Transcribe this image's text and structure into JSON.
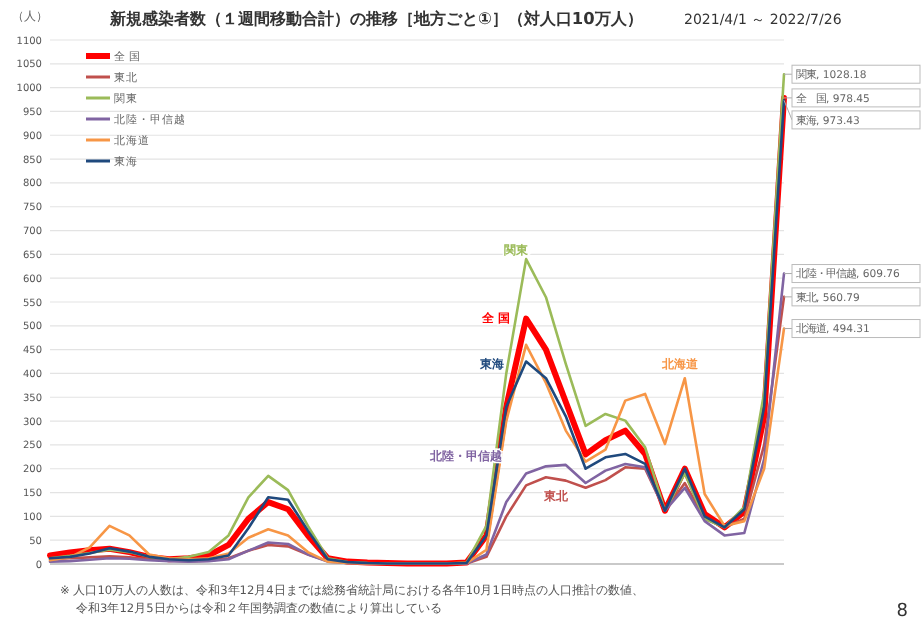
{
  "chart_data": {
    "type": "line",
    "title": "新規感染者数（１週間移動合計）の推移［地方ごと①］（対人口10万人）",
    "subtitle": "2021/4/1 ～ 2022/7/26",
    "ylabel": "（人）",
    "categories": [
      null,
      null,
      null,
      null,
      null,
      null,
      null,
      null,
      null,
      null,
      null,
      null,
      null,
      null,
      null,
      null,
      null,
      null,
      null,
      null,
      null,
      null,
      null,
      null,
      null,
      null,
      null,
      null,
      null,
      null,
      null,
      null,
      null,
      null,
      null,
      null,
      null,
      null
    ],
    "series": [
      {
        "name": "全 国",
        "color": "#ff0000",
        "values": [
          18,
          24,
          29,
          32,
          25,
          15,
          10,
          12,
          18,
          40,
          95,
          130,
          115,
          60,
          12,
          5,
          3,
          2,
          1,
          1,
          1,
          3,
          60,
          330,
          515,
          450,
          340,
          230,
          260,
          280,
          231,
          112,
          200,
          105,
          77,
          110,
          310,
          978.45
        ],
        "value_labels": [
          null,
          null,
          null,
          null,
          null,
          null,
          null,
          null,
          null,
          null,
          null,
          null,
          null,
          null,
          null,
          null,
          null,
          null,
          null,
          null,
          null,
          null,
          null,
          null,
          null,
          null,
          null,
          null,
          null,
          null,
          null,
          null,
          null,
          null,
          null,
          null,
          null,
          "全　国, 978.45"
        ]
      },
      {
        "name": "東北",
        "color": "#c0504d",
        "values": [
          10,
          12,
          14,
          16,
          14,
          10,
          7,
          6,
          7,
          12,
          28,
          40,
          37,
          20,
          6,
          3,
          2,
          1,
          1,
          1,
          1,
          1,
          15,
          100,
          165,
          182,
          175,
          160,
          176,
          203,
          200,
          112,
          170,
          95,
          77,
          95,
          250,
          560.79
        ],
        "value_labels": [
          null,
          null,
          null,
          null,
          null,
          null,
          null,
          null,
          null,
          null,
          null,
          null,
          null,
          null,
          null,
          null,
          null,
          null,
          null,
          null,
          null,
          null,
          null,
          null,
          null,
          null,
          null,
          null,
          null,
          null,
          null,
          null,
          null,
          null,
          null,
          null,
          null,
          "東北, 560.79"
        ]
      },
      {
        "name": "関東",
        "color": "#9bbb59",
        "values": [
          12,
          17,
          23,
          30,
          25,
          15,
          10,
          15,
          25,
          60,
          140,
          185,
          155,
          80,
          12,
          4,
          2,
          1,
          1,
          1,
          1,
          3,
          80,
          400,
          640,
          560,
          420,
          290,
          315,
          301,
          245,
          112,
          190,
          95,
          77,
          120,
          360,
          1028.18
        ],
        "value_labels": [
          null,
          null,
          null,
          null,
          null,
          null,
          null,
          null,
          null,
          null,
          null,
          null,
          null,
          null,
          null,
          null,
          null,
          null,
          null,
          null,
          null,
          null,
          null,
          null,
          null,
          null,
          null,
          null,
          null,
          null,
          null,
          null,
          null,
          null,
          null,
          null,
          null,
          "関東, 1028.18"
        ]
      },
      {
        "name": "北陸・甲信越",
        "color": "#8064a2",
        "values": [
          5,
          6,
          9,
          12,
          11,
          8,
          6,
          5,
          6,
          10,
          28,
          45,
          42,
          20,
          5,
          2,
          1,
          1,
          1,
          1,
          1,
          1,
          20,
          130,
          190,
          205,
          208,
          170,
          196,
          210,
          203,
          112,
          160,
          90,
          60,
          65,
          220,
          609.76
        ],
        "value_labels": [
          null,
          null,
          null,
          null,
          null,
          null,
          null,
          null,
          null,
          null,
          null,
          null,
          null,
          null,
          null,
          null,
          null,
          null,
          null,
          null,
          null,
          null,
          null,
          null,
          null,
          null,
          null,
          null,
          null,
          null,
          null,
          null,
          null,
          null,
          null,
          null,
          null,
          "北陸・甲信越, 609.76"
        ]
      },
      {
        "name": "北海道",
        "color": "#f79646",
        "values": [
          8,
          14,
          35,
          80,
          60,
          20,
          12,
          10,
          12,
          22,
          55,
          73,
          60,
          25,
          5,
          2,
          1,
          1,
          1,
          1,
          1,
          2,
          30,
          300,
          460,
          380,
          280,
          215,
          240,
          343,
          357,
          252,
          390,
          147,
          80,
          90,
          200,
          494.31
        ],
        "value_labels": [
          null,
          null,
          null,
          null,
          null,
          null,
          null,
          null,
          null,
          null,
          null,
          null,
          null,
          null,
          null,
          null,
          null,
          null,
          null,
          null,
          null,
          null,
          null,
          null,
          null,
          null,
          null,
          null,
          null,
          null,
          null,
          null,
          null,
          null,
          null,
          null,
          null,
          "北海道, 494.31"
        ]
      },
      {
        "name": "東海",
        "color": "#1f497d",
        "values": [
          12,
          15,
          22,
          33,
          26,
          15,
          10,
          8,
          10,
          18,
          75,
          140,
          135,
          70,
          10,
          4,
          2,
          1,
          1,
          1,
          1,
          2,
          60,
          330,
          425,
          390,
          310,
          200,
          224,
          231,
          210,
          112,
          200,
          100,
          77,
          115,
          330,
          973.43
        ],
        "value_labels": [
          null,
          null,
          null,
          null,
          null,
          null,
          null,
          null,
          null,
          null,
          null,
          null,
          null,
          null,
          null,
          null,
          null,
          null,
          null,
          null,
          null,
          null,
          null,
          null,
          null,
          null,
          null,
          null,
          null,
          null,
          null,
          null,
          null,
          null,
          null,
          null,
          null,
          "東海, 973.43"
        ]
      }
    ],
    "ylim": [
      0,
      1100
    ],
    "yticks": [
      0,
      50,
      100,
      150,
      200,
      250,
      300,
      350,
      400,
      450,
      500,
      550,
      600,
      650,
      700,
      750,
      800,
      850,
      900,
      950,
      1000,
      1050,
      1100
    ],
    "grid": "y",
    "legend": "top left",
    "tick_labels": "y",
    "marker": "none",
    "line_style": "solid",
    "annotations": [
      "※ 人口10万人の人数は、令和3年12月4日までは総務省統計局における各年10月1日時点の人口推計の数値、",
      "令和3年12月5日からは令和２年国勢調査の数値により算出している",
      "8"
    ]
  }
}
